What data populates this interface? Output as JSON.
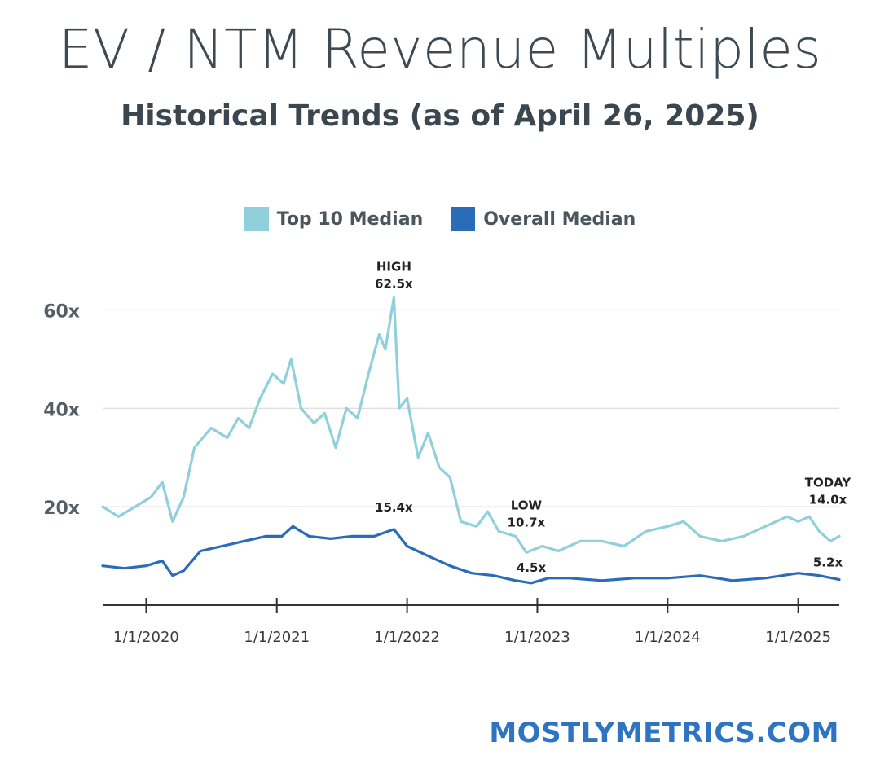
{
  "header": {
    "title": "EV / NTM Revenue Multiples",
    "subtitle": "Historical Trends (as of April 26, 2025)"
  },
  "brand": {
    "text": "MOSTLYMETRICS.COM",
    "color": "#2f74c2"
  },
  "chart_data": {
    "type": "line",
    "x_axis_type": "date",
    "xlim": [
      "2019-09-01",
      "2025-04-26"
    ],
    "ylim": [
      0,
      70
    ],
    "grid": true,
    "legend_position": "top",
    "y_ticks": [
      {
        "value": 20,
        "label": "20x"
      },
      {
        "value": 40,
        "label": "40x"
      },
      {
        "value": 60,
        "label": "60x"
      }
    ],
    "x_ticks": [
      {
        "value": "2020-01-01",
        "label": "1/1/2020"
      },
      {
        "value": "2021-01-01",
        "label": "1/1/2021"
      },
      {
        "value": "2022-01-01",
        "label": "1/1/2022"
      },
      {
        "value": "2023-01-01",
        "label": "1/1/2023"
      },
      {
        "value": "2024-01-01",
        "label": "1/1/2024"
      },
      {
        "value": "2025-01-01",
        "label": "1/1/2025"
      }
    ],
    "series": [
      {
        "name": "Top 10 Median",
        "color": "#8fd0dc",
        "points": [
          [
            "2019-09-01",
            20
          ],
          [
            "2019-10-15",
            18
          ],
          [
            "2019-12-01",
            20
          ],
          [
            "2020-01-15",
            22
          ],
          [
            "2020-02-15",
            25
          ],
          [
            "2020-03-15",
            17
          ],
          [
            "2020-04-15",
            22
          ],
          [
            "2020-05-15",
            32
          ],
          [
            "2020-07-01",
            36
          ],
          [
            "2020-08-15",
            34
          ],
          [
            "2020-09-15",
            38
          ],
          [
            "2020-10-15",
            36
          ],
          [
            "2020-11-15",
            42
          ],
          [
            "2020-12-20",
            47
          ],
          [
            "2021-01-20",
            45
          ],
          [
            "2021-02-10",
            50
          ],
          [
            "2021-03-10",
            40
          ],
          [
            "2021-04-15",
            37
          ],
          [
            "2021-05-15",
            39
          ],
          [
            "2021-06-15",
            32
          ],
          [
            "2021-07-15",
            40
          ],
          [
            "2021-08-15",
            38
          ],
          [
            "2021-09-15",
            47
          ],
          [
            "2021-10-15",
            55
          ],
          [
            "2021-11-01",
            52
          ],
          [
            "2021-11-25",
            62.5
          ],
          [
            "2021-12-10",
            40
          ],
          [
            "2022-01-01",
            42
          ],
          [
            "2022-02-01",
            30
          ],
          [
            "2022-03-01",
            35
          ],
          [
            "2022-04-01",
            28
          ],
          [
            "2022-05-01",
            26
          ],
          [
            "2022-06-01",
            17
          ],
          [
            "2022-07-15",
            16
          ],
          [
            "2022-08-15",
            19
          ],
          [
            "2022-09-15",
            15
          ],
          [
            "2022-11-01",
            14
          ],
          [
            "2022-12-01",
            10.7
          ],
          [
            "2023-01-15",
            12
          ],
          [
            "2023-03-01",
            11
          ],
          [
            "2023-05-01",
            13
          ],
          [
            "2023-07-01",
            13
          ],
          [
            "2023-09-01",
            12
          ],
          [
            "2023-11-01",
            15
          ],
          [
            "2024-01-01",
            16
          ],
          [
            "2024-02-15",
            17
          ],
          [
            "2024-04-01",
            14
          ],
          [
            "2024-06-01",
            13
          ],
          [
            "2024-08-01",
            14
          ],
          [
            "2024-10-01",
            16
          ],
          [
            "2024-12-01",
            18
          ],
          [
            "2025-01-01",
            17
          ],
          [
            "2025-02-01",
            18
          ],
          [
            "2025-03-01",
            15
          ],
          [
            "2025-04-01",
            13
          ],
          [
            "2025-04-26",
            14
          ]
        ]
      },
      {
        "name": "Overall Median",
        "color": "#2b6cb8",
        "points": [
          [
            "2019-09-01",
            8
          ],
          [
            "2019-11-01",
            7.5
          ],
          [
            "2020-01-01",
            8
          ],
          [
            "2020-02-15",
            9
          ],
          [
            "2020-03-15",
            6
          ],
          [
            "2020-04-15",
            7
          ],
          [
            "2020-06-01",
            11
          ],
          [
            "2020-08-01",
            12
          ],
          [
            "2020-10-01",
            13
          ],
          [
            "2020-12-01",
            14
          ],
          [
            "2021-01-15",
            14
          ],
          [
            "2021-02-15",
            16
          ],
          [
            "2021-04-01",
            14
          ],
          [
            "2021-06-01",
            13.5
          ],
          [
            "2021-08-01",
            14
          ],
          [
            "2021-10-01",
            14
          ],
          [
            "2021-11-25",
            15.4
          ],
          [
            "2022-01-01",
            12
          ],
          [
            "2022-03-01",
            10
          ],
          [
            "2022-05-01",
            8
          ],
          [
            "2022-07-01",
            6.5
          ],
          [
            "2022-09-01",
            6
          ],
          [
            "2022-11-01",
            5
          ],
          [
            "2022-12-15",
            4.5
          ],
          [
            "2023-02-01",
            5.5
          ],
          [
            "2023-04-01",
            5.5
          ],
          [
            "2023-07-01",
            5
          ],
          [
            "2023-10-01",
            5.5
          ],
          [
            "2024-01-01",
            5.5
          ],
          [
            "2024-04-01",
            6
          ],
          [
            "2024-07-01",
            5
          ],
          [
            "2024-10-01",
            5.5
          ],
          [
            "2025-01-01",
            6.5
          ],
          [
            "2025-03-01",
            6
          ],
          [
            "2025-04-26",
            5.2
          ]
        ]
      }
    ],
    "annotations": [
      {
        "series": "Top 10 Median",
        "x": "2021-11-25",
        "y": 62.5,
        "lines": [
          "HIGH",
          "62.5x"
        ]
      },
      {
        "series": "Top 10 Median",
        "x": "2022-12-01",
        "y": 10.7,
        "lines": [
          "LOW",
          "10.7x"
        ]
      },
      {
        "series": "Top 10 Median",
        "x": "2025-04-26",
        "y": 14.0,
        "lines": [
          "TODAY",
          "14.0x"
        ]
      },
      {
        "series": "Overall Median",
        "x": "2021-11-25",
        "y": 15.4,
        "lines": [
          "15.4x"
        ]
      },
      {
        "series": "Overall Median",
        "x": "2022-12-15",
        "y": 4.5,
        "lines": [
          "4.5x"
        ]
      },
      {
        "series": "Overall Median",
        "x": "2025-04-26",
        "y": 5.2,
        "lines": [
          "5.2x"
        ]
      }
    ]
  }
}
